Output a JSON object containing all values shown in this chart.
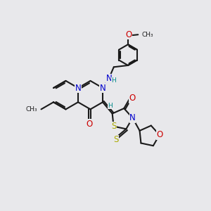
{
  "bg_color": "#e8e8eb",
  "bond_color": "#1a1a1a",
  "bond_lw": 1.5,
  "atom_colors": {
    "C": "#1a1a1a",
    "N": "#0000cc",
    "O": "#cc0000",
    "S": "#aaaa00",
    "H": "#008888"
  },
  "font_size": 8.5,
  "fig_size": [
    3.0,
    3.0
  ],
  "dpi": 100
}
